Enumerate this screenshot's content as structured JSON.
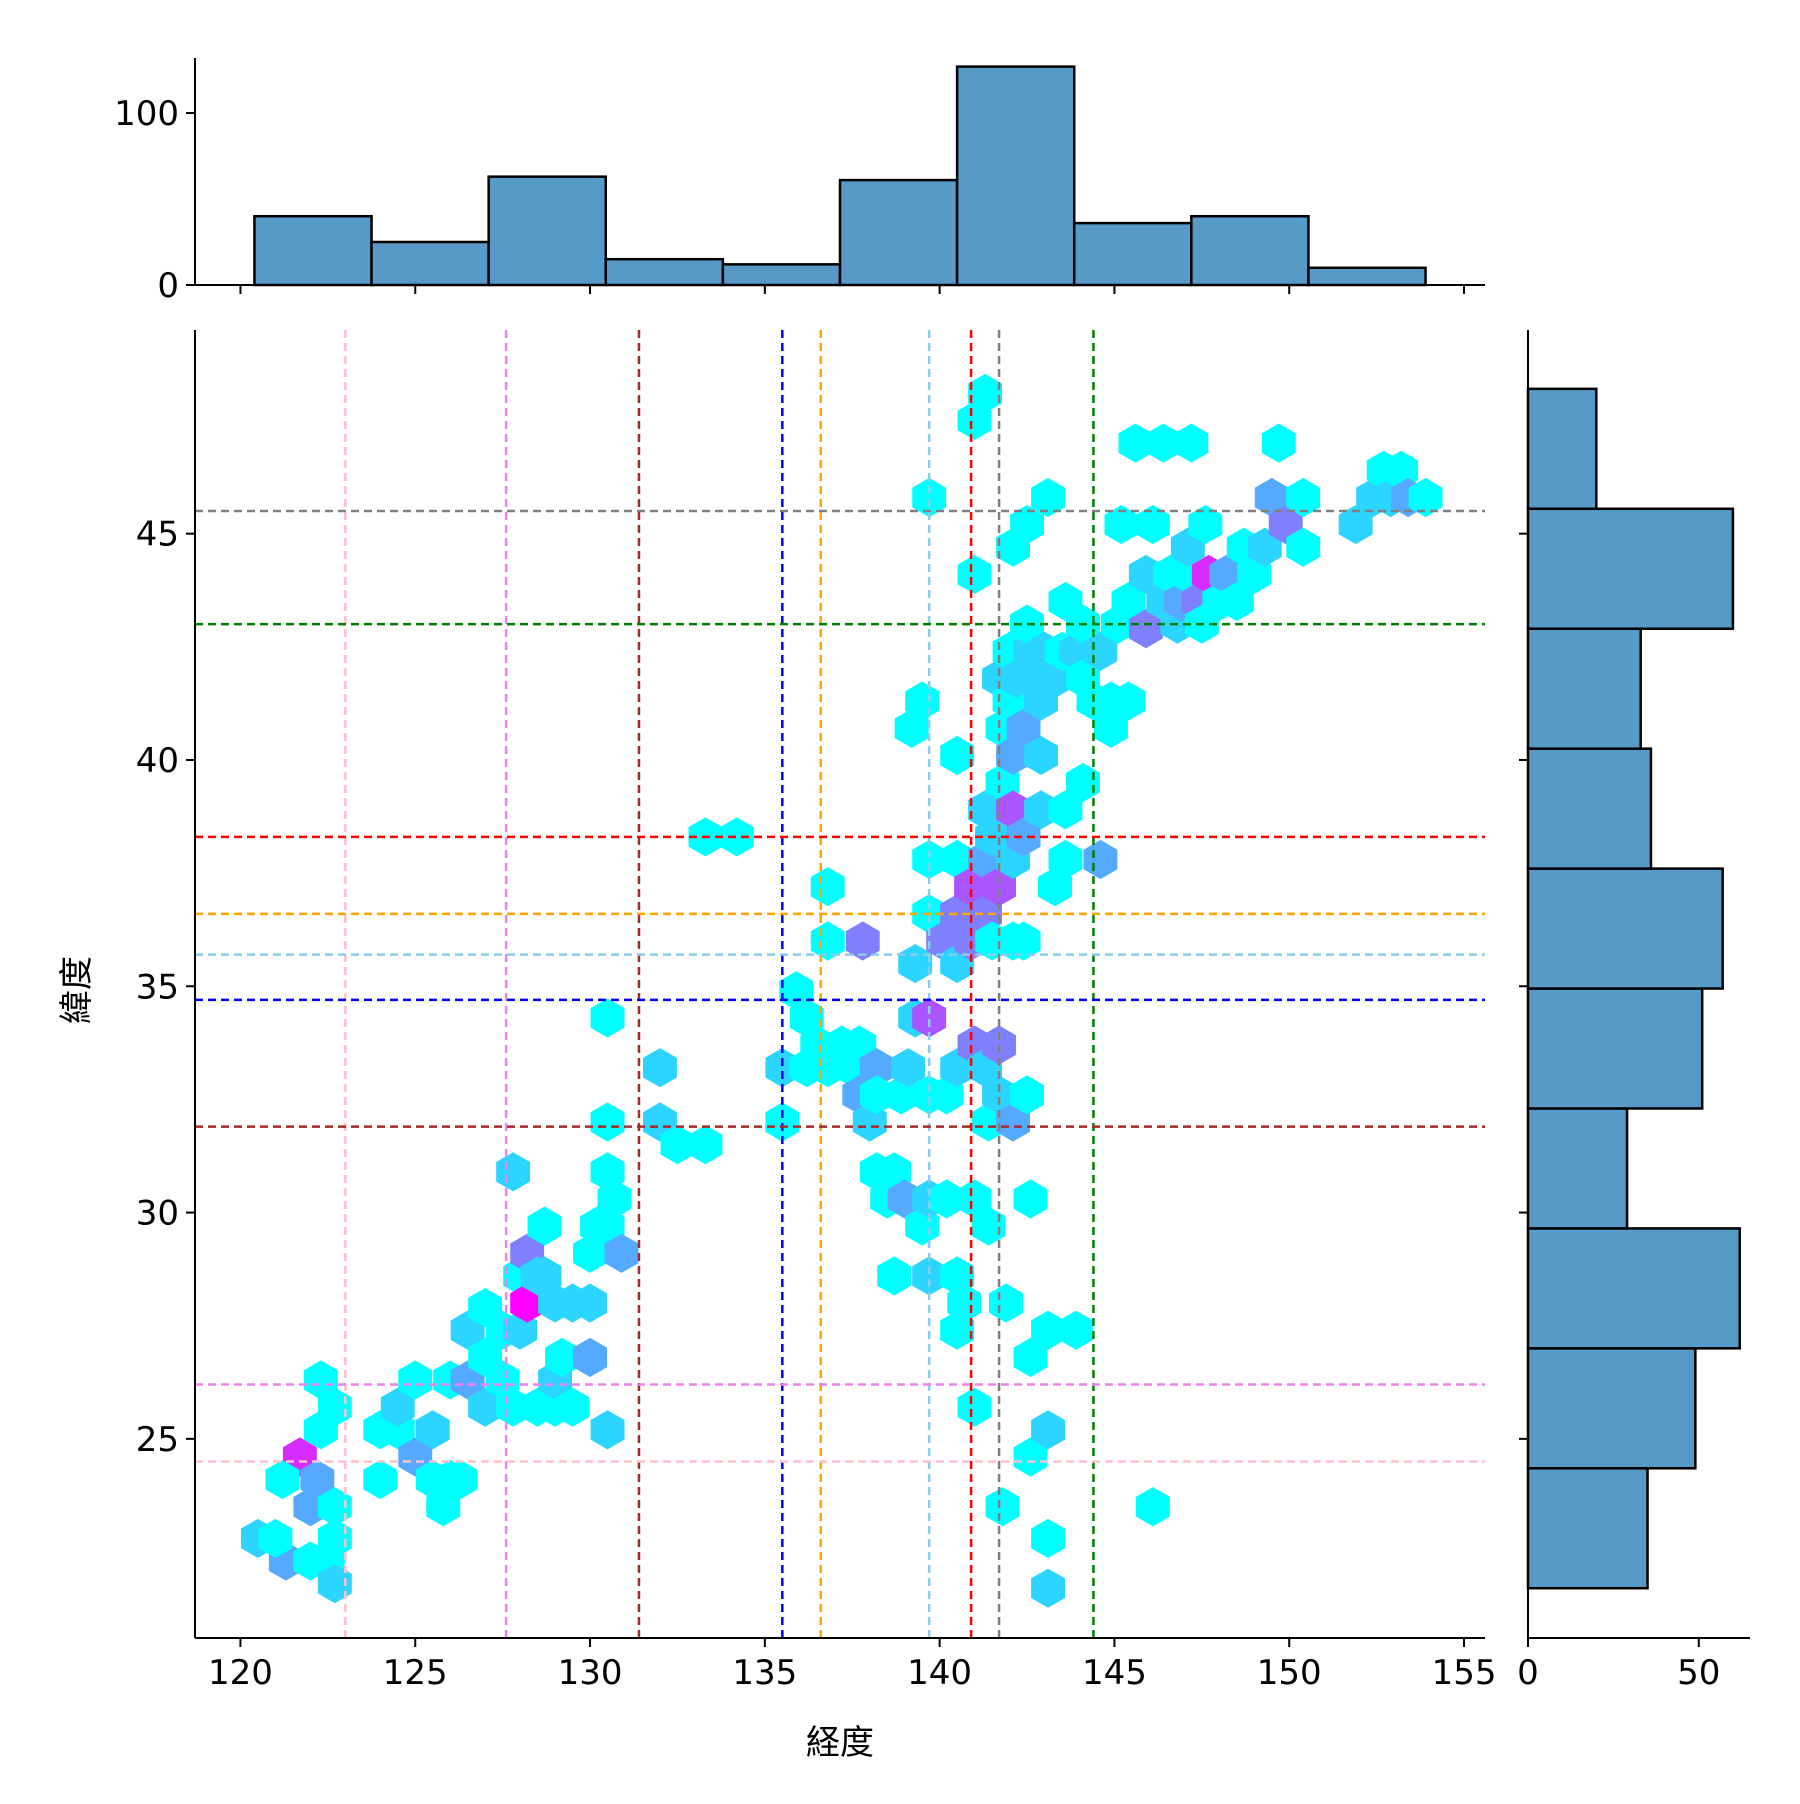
{
  "chart_data": {
    "type": "hexbin",
    "xlabel": "経度",
    "ylabel": "緯度",
    "xlim": [
      118.7,
      155.6
    ],
    "ylim": [
      20.6,
      49.5
    ],
    "xticks": [
      "120",
      "125",
      "130",
      "135",
      "140",
      "145",
      "150",
      "155"
    ],
    "xtick_values": [
      120,
      125,
      130,
      135,
      140,
      145,
      150,
      155
    ],
    "yticks": [
      "25",
      "30",
      "35",
      "40",
      "45"
    ],
    "ytick_values": [
      25,
      30,
      35,
      40,
      45
    ],
    "colormap": "cool",
    "color_low": "#00ffff",
    "color_high": "#ff00ff",
    "hexbins": [
      {
        "x": 121.7,
        "y": 24.6,
        "c": 6
      },
      {
        "x": 122.0,
        "y": 23.5,
        "c": 3
      },
      {
        "x": 122.2,
        "y": 24.1,
        "c": 3
      },
      {
        "x": 121.3,
        "y": 22.3,
        "c": 3
      },
      {
        "x": 120.5,
        "y": 22.8,
        "c": 2
      },
      {
        "x": 121.2,
        "y": 24.1,
        "c": 1
      },
      {
        "x": 121.0,
        "y": 22.8,
        "c": 1
      },
      {
        "x": 122.0,
        "y": 22.3,
        "c": 1
      },
      {
        "x": 122.5,
        "y": 22.3,
        "c": 1
      },
      {
        "x": 122.7,
        "y": 21.8,
        "c": 2
      },
      {
        "x": 122.7,
        "y": 22.8,
        "c": 1
      },
      {
        "x": 122.3,
        "y": 25.2,
        "c": 1
      },
      {
        "x": 122.7,
        "y": 25.7,
        "c": 1
      },
      {
        "x": 122.3,
        "y": 26.3,
        "c": 1
      },
      {
        "x": 122.7,
        "y": 23.5,
        "c": 1
      },
      {
        "x": 124.0,
        "y": 24.1,
        "c": 1
      },
      {
        "x": 124.0,
        "y": 25.2,
        "c": 1
      },
      {
        "x": 124.5,
        "y": 25.2,
        "c": 1
      },
      {
        "x": 124.5,
        "y": 25.7,
        "c": 2
      },
      {
        "x": 125.0,
        "y": 26.3,
        "c": 1
      },
      {
        "x": 125.0,
        "y": 24.6,
        "c": 3
      },
      {
        "x": 125.5,
        "y": 24.1,
        "c": 1
      },
      {
        "x": 125.5,
        "y": 25.2,
        "c": 2
      },
      {
        "x": 126.0,
        "y": 24.1,
        "c": 1
      },
      {
        "x": 125.8,
        "y": 23.5,
        "c": 1
      },
      {
        "x": 126.3,
        "y": 24.1,
        "c": 1
      },
      {
        "x": 126.0,
        "y": 26.3,
        "c": 1
      },
      {
        "x": 126.5,
        "y": 26.3,
        "c": 3
      },
      {
        "x": 126.5,
        "y": 27.4,
        "c": 2
      },
      {
        "x": 127.0,
        "y": 25.7,
        "c": 2
      },
      {
        "x": 127.0,
        "y": 26.8,
        "c": 1
      },
      {
        "x": 127.0,
        "y": 27.9,
        "c": 1
      },
      {
        "x": 127.5,
        "y": 26.3,
        "c": 1
      },
      {
        "x": 127.5,
        "y": 27.4,
        "c": 1
      },
      {
        "x": 127.8,
        "y": 25.7,
        "c": 1
      },
      {
        "x": 128.0,
        "y": 27.4,
        "c": 2
      },
      {
        "x": 128.0,
        "y": 28.6,
        "c": 1
      },
      {
        "x": 127.8,
        "y": 30.9,
        "c": 2
      },
      {
        "x": 128.2,
        "y": 29.1,
        "c": 4
      },
      {
        "x": 128.2,
        "y": 28.0,
        "c": 7
      },
      {
        "x": 128.5,
        "y": 25.7,
        "c": 1
      },
      {
        "x": 128.5,
        "y": 28.6,
        "c": 2
      },
      {
        "x": 128.7,
        "y": 28.6,
        "c": 2
      },
      {
        "x": 128.7,
        "y": 29.7,
        "c": 1
      },
      {
        "x": 129.0,
        "y": 25.7,
        "c": 1
      },
      {
        "x": 129.0,
        "y": 26.3,
        "c": 2
      },
      {
        "x": 129.0,
        "y": 28.0,
        "c": 2
      },
      {
        "x": 129.2,
        "y": 26.8,
        "c": 1
      },
      {
        "x": 129.5,
        "y": 25.7,
        "c": 1
      },
      {
        "x": 129.5,
        "y": 28.0,
        "c": 2
      },
      {
        "x": 130.0,
        "y": 28.0,
        "c": 2
      },
      {
        "x": 130.0,
        "y": 26.8,
        "c": 3
      },
      {
        "x": 130.0,
        "y": 29.1,
        "c": 1
      },
      {
        "x": 130.2,
        "y": 29.7,
        "c": 1
      },
      {
        "x": 130.5,
        "y": 30.9,
        "c": 1
      },
      {
        "x": 130.7,
        "y": 30.3,
        "c": 1
      },
      {
        "x": 130.5,
        "y": 29.7,
        "c": 1
      },
      {
        "x": 130.9,
        "y": 29.1,
        "c": 3
      },
      {
        "x": 130.5,
        "y": 25.2,
        "c": 2
      },
      {
        "x": 130.5,
        "y": 32.0,
        "c": 1
      },
      {
        "x": 130.5,
        "y": 34.3,
        "c": 1
      },
      {
        "x": 132.0,
        "y": 33.2,
        "c": 2
      },
      {
        "x": 132.0,
        "y": 32.0,
        "c": 2
      },
      {
        "x": 132.5,
        "y": 31.5,
        "c": 1
      },
      {
        "x": 133.3,
        "y": 31.5,
        "c": 1
      },
      {
        "x": 133.3,
        "y": 38.3,
        "c": 1
      },
      {
        "x": 134.2,
        "y": 38.3,
        "c": 1
      },
      {
        "x": 135.5,
        "y": 33.2,
        "c": 2
      },
      {
        "x": 135.5,
        "y": 32.0,
        "c": 1
      },
      {
        "x": 135.9,
        "y": 34.9,
        "c": 1
      },
      {
        "x": 136.2,
        "y": 34.3,
        "c": 1
      },
      {
        "x": 136.2,
        "y": 33.2,
        "c": 1
      },
      {
        "x": 136.5,
        "y": 33.7,
        "c": 1
      },
      {
        "x": 136.8,
        "y": 33.2,
        "c": 1
      },
      {
        "x": 136.8,
        "y": 36.0,
        "c": 1
      },
      {
        "x": 136.8,
        "y": 37.2,
        "c": 1
      },
      {
        "x": 137.2,
        "y": 33.7,
        "c": 1
      },
      {
        "x": 137.5,
        "y": 33.2,
        "c": 1
      },
      {
        "x": 137.7,
        "y": 33.7,
        "c": 1
      },
      {
        "x": 137.7,
        "y": 32.6,
        "c": 3
      },
      {
        "x": 137.8,
        "y": 36.0,
        "c": 4
      },
      {
        "x": 138.0,
        "y": 32.0,
        "c": 2
      },
      {
        "x": 138.2,
        "y": 33.2,
        "c": 3
      },
      {
        "x": 138.2,
        "y": 32.6,
        "c": 1
      },
      {
        "x": 138.2,
        "y": 30.9,
        "c": 1
      },
      {
        "x": 138.5,
        "y": 30.3,
        "c": 1
      },
      {
        "x": 138.7,
        "y": 30.9,
        "c": 1
      },
      {
        "x": 138.9,
        "y": 32.6,
        "c": 1
      },
      {
        "x": 138.7,
        "y": 28.6,
        "c": 1
      },
      {
        "x": 139.0,
        "y": 30.3,
        "c": 3
      },
      {
        "x": 139.1,
        "y": 33.2,
        "c": 2
      },
      {
        "x": 139.3,
        "y": 35.5,
        "c": 2
      },
      {
        "x": 139.3,
        "y": 34.3,
        "c": 2
      },
      {
        "x": 139.7,
        "y": 34.3,
        "c": 5
      },
      {
        "x": 139.7,
        "y": 32.6,
        "c": 1
      },
      {
        "x": 139.5,
        "y": 29.7,
        "c": 1
      },
      {
        "x": 139.7,
        "y": 28.6,
        "c": 2
      },
      {
        "x": 139.7,
        "y": 30.3,
        "c": 2
      },
      {
        "x": 139.7,
        "y": 36.6,
        "c": 1
      },
      {
        "x": 139.7,
        "y": 37.8,
        "c": 1
      },
      {
        "x": 139.7,
        "y": 45.8,
        "c": 1
      },
      {
        "x": 139.5,
        "y": 41.3,
        "c": 1
      },
      {
        "x": 139.2,
        "y": 40.7,
        "c": 1
      },
      {
        "x": 140.1,
        "y": 36.0,
        "c": 4
      },
      {
        "x": 140.2,
        "y": 32.6,
        "c": 1
      },
      {
        "x": 140.2,
        "y": 30.3,
        "c": 1
      },
      {
        "x": 140.5,
        "y": 33.2,
        "c": 2
      },
      {
        "x": 140.5,
        "y": 35.5,
        "c": 2
      },
      {
        "x": 140.5,
        "y": 36.6,
        "c": 4
      },
      {
        "x": 140.5,
        "y": 37.8,
        "c": 1
      },
      {
        "x": 140.5,
        "y": 28.6,
        "c": 1
      },
      {
        "x": 140.5,
        "y": 27.4,
        "c": 1
      },
      {
        "x": 140.5,
        "y": 40.1,
        "c": 1
      },
      {
        "x": 140.7,
        "y": 28.0,
        "c": 1
      },
      {
        "x": 140.9,
        "y": 37.2,
        "c": 5
      },
      {
        "x": 140.9,
        "y": 36.0,
        "c": 4
      },
      {
        "x": 141.0,
        "y": 33.7,
        "c": 4
      },
      {
        "x": 141.0,
        "y": 30.3,
        "c": 1
      },
      {
        "x": 141.0,
        "y": 25.7,
        "c": 1
      },
      {
        "x": 141.0,
        "y": 44.1,
        "c": 1
      },
      {
        "x": 141.0,
        "y": 47.5,
        "c": 1
      },
      {
        "x": 141.3,
        "y": 48.1,
        "c": 1
      },
      {
        "x": 141.3,
        "y": 38.9,
        "c": 2
      },
      {
        "x": 141.3,
        "y": 36.6,
        "c": 4
      },
      {
        "x": 141.3,
        "y": 37.8,
        "c": 3
      },
      {
        "x": 141.3,
        "y": 33.2,
        "c": 2
      },
      {
        "x": 141.4,
        "y": 32.0,
        "c": 1
      },
      {
        "x": 141.4,
        "y": 29.7,
        "c": 1
      },
      {
        "x": 141.5,
        "y": 38.3,
        "c": 2
      },
      {
        "x": 141.5,
        "y": 36.0,
        "c": 1
      },
      {
        "x": 141.7,
        "y": 37.2,
        "c": 5
      },
      {
        "x": 141.7,
        "y": 33.7,
        "c": 4
      },
      {
        "x": 141.7,
        "y": 32.6,
        "c": 2
      },
      {
        "x": 141.7,
        "y": 41.8,
        "c": 2
      },
      {
        "x": 141.8,
        "y": 39.5,
        "c": 1
      },
      {
        "x": 141.8,
        "y": 40.7,
        "c": 1
      },
      {
        "x": 141.8,
        "y": 23.5,
        "c": 1
      },
      {
        "x": 141.9,
        "y": 28.0,
        "c": 1
      },
      {
        "x": 142.0,
        "y": 42.4,
        "c": 1
      },
      {
        "x": 142.0,
        "y": 41.3,
        "c": 1
      },
      {
        "x": 142.1,
        "y": 40.1,
        "c": 3
      },
      {
        "x": 142.1,
        "y": 38.9,
        "c": 5
      },
      {
        "x": 142.1,
        "y": 37.8,
        "c": 2
      },
      {
        "x": 142.1,
        "y": 36.0,
        "c": 1
      },
      {
        "x": 142.1,
        "y": 32.0,
        "c": 3
      },
      {
        "x": 142.1,
        "y": 44.7,
        "c": 1
      },
      {
        "x": 142.2,
        "y": 41.8,
        "c": 2
      },
      {
        "x": 142.4,
        "y": 36.0,
        "c": 1
      },
      {
        "x": 142.4,
        "y": 38.3,
        "c": 3
      },
      {
        "x": 142.4,
        "y": 40.7,
        "c": 3
      },
      {
        "x": 142.6,
        "y": 42.4,
        "c": 2
      },
      {
        "x": 142.5,
        "y": 45.2,
        "c": 1
      },
      {
        "x": 142.5,
        "y": 43.0,
        "c": 1
      },
      {
        "x": 142.5,
        "y": 32.6,
        "c": 1
      },
      {
        "x": 142.6,
        "y": 26.8,
        "c": 1
      },
      {
        "x": 142.6,
        "y": 24.6,
        "c": 1
      },
      {
        "x": 142.6,
        "y": 41.8,
        "c": 2
      },
      {
        "x": 142.6,
        "y": 30.3,
        "c": 1
      },
      {
        "x": 142.9,
        "y": 41.3,
        "c": 2
      },
      {
        "x": 142.9,
        "y": 40.1,
        "c": 2
      },
      {
        "x": 142.9,
        "y": 38.9,
        "c": 2
      },
      {
        "x": 143.0,
        "y": 42.4,
        "c": 2
      },
      {
        "x": 143.1,
        "y": 45.8,
        "c": 1
      },
      {
        "x": 143.1,
        "y": 27.4,
        "c": 1
      },
      {
        "x": 143.1,
        "y": 25.2,
        "c": 2
      },
      {
        "x": 143.1,
        "y": 22.8,
        "c": 1
      },
      {
        "x": 143.1,
        "y": 21.7,
        "c": 2
      },
      {
        "x": 143.3,
        "y": 41.8,
        "c": 2
      },
      {
        "x": 143.3,
        "y": 37.2,
        "c": 1
      },
      {
        "x": 143.5,
        "y": 42.4,
        "c": 1
      },
      {
        "x": 143.6,
        "y": 43.5,
        "c": 1
      },
      {
        "x": 143.6,
        "y": 38.9,
        "c": 1
      },
      {
        "x": 143.6,
        "y": 37.8,
        "c": 1
      },
      {
        "x": 143.9,
        "y": 27.4,
        "c": 1
      },
      {
        "x": 143.9,
        "y": 42.4,
        "c": 2
      },
      {
        "x": 144.1,
        "y": 41.8,
        "c": 1
      },
      {
        "x": 144.1,
        "y": 43.0,
        "c": 1
      },
      {
        "x": 144.1,
        "y": 39.5,
        "c": 1
      },
      {
        "x": 144.4,
        "y": 41.3,
        "c": 1
      },
      {
        "x": 144.6,
        "y": 42.4,
        "c": 2
      },
      {
        "x": 144.6,
        "y": 37.8,
        "c": 3
      },
      {
        "x": 144.9,
        "y": 40.7,
        "c": 1
      },
      {
        "x": 144.9,
        "y": 41.3,
        "c": 1
      },
      {
        "x": 145.1,
        "y": 43.0,
        "c": 1
      },
      {
        "x": 145.2,
        "y": 45.2,
        "c": 1
      },
      {
        "x": 145.4,
        "y": 41.3,
        "c": 1
      },
      {
        "x": 145.4,
        "y": 43.5,
        "c": 1
      },
      {
        "x": 145.6,
        "y": 47.0,
        "c": 1
      },
      {
        "x": 145.9,
        "y": 44.1,
        "c": 2
      },
      {
        "x": 145.9,
        "y": 42.9,
        "c": 4
      },
      {
        "x": 146.1,
        "y": 45.2,
        "c": 1
      },
      {
        "x": 146.1,
        "y": 23.5,
        "c": 1
      },
      {
        "x": 146.4,
        "y": 43.5,
        "c": 2
      },
      {
        "x": 146.4,
        "y": 47.0,
        "c": 1
      },
      {
        "x": 146.6,
        "y": 44.1,
        "c": 1
      },
      {
        "x": 146.8,
        "y": 43.0,
        "c": 2
      },
      {
        "x": 146.9,
        "y": 43.5,
        "c": 3
      },
      {
        "x": 147.1,
        "y": 44.1,
        "c": 1
      },
      {
        "x": 147.1,
        "y": 44.7,
        "c": 2
      },
      {
        "x": 147.2,
        "y": 47.0,
        "c": 1
      },
      {
        "x": 147.4,
        "y": 43.5,
        "c": 4
      },
      {
        "x": 147.5,
        "y": 43.0,
        "c": 1
      },
      {
        "x": 147.6,
        "y": 45.2,
        "c": 1
      },
      {
        "x": 147.7,
        "y": 44.1,
        "c": 6
      },
      {
        "x": 148.0,
        "y": 43.5,
        "c": 1
      },
      {
        "x": 148.2,
        "y": 44.1,
        "c": 3
      },
      {
        "x": 148.5,
        "y": 43.5,
        "c": 1
      },
      {
        "x": 148.7,
        "y": 44.7,
        "c": 1
      },
      {
        "x": 149.0,
        "y": 44.1,
        "c": 1
      },
      {
        "x": 149.3,
        "y": 44.7,
        "c": 2
      },
      {
        "x": 149.5,
        "y": 45.8,
        "c": 3
      },
      {
        "x": 149.7,
        "y": 47.0,
        "c": 1
      },
      {
        "x": 149.9,
        "y": 45.2,
        "c": 4
      },
      {
        "x": 150.4,
        "y": 45.8,
        "c": 1
      },
      {
        "x": 150.4,
        "y": 44.7,
        "c": 1
      },
      {
        "x": 151.9,
        "y": 45.2,
        "c": 2
      },
      {
        "x": 152.4,
        "y": 45.8,
        "c": 2
      },
      {
        "x": 152.7,
        "y": 46.4,
        "c": 1
      },
      {
        "x": 152.9,
        "y": 45.8,
        "c": 2
      },
      {
        "x": 153.2,
        "y": 46.4,
        "c": 1
      },
      {
        "x": 153.4,
        "y": 45.8,
        "c": 3
      },
      {
        "x": 153.9,
        "y": 45.8,
        "c": 1
      }
    ],
    "vlines": [
      {
        "x": 123.0,
        "color": "#ffc0cb"
      },
      {
        "x": 127.6,
        "color": "#ee82ee"
      },
      {
        "x": 131.4,
        "color": "#a52a2a"
      },
      {
        "x": 135.5,
        "color": "#0000ff"
      },
      {
        "x": 136.6,
        "color": "#ffa500"
      },
      {
        "x": 139.7,
        "color": "#87ceeb"
      },
      {
        "x": 140.9,
        "color": "#ff0000"
      },
      {
        "x": 141.7,
        "color": "#808080"
      },
      {
        "x": 144.4,
        "color": "#008000"
      }
    ],
    "hlines": [
      {
        "y": 24.5,
        "color": "#ffc0cb"
      },
      {
        "y": 26.2,
        "color": "#ee82ee"
      },
      {
        "y": 31.9,
        "color": "#a52a2a"
      },
      {
        "y": 34.7,
        "color": "#0000ff"
      },
      {
        "y": 35.7,
        "color": "#87ceeb"
      },
      {
        "y": 36.6,
        "color": "#ffa500"
      },
      {
        "y": 38.3,
        "color": "#ff0000"
      },
      {
        "y": 43.0,
        "color": "#008000"
      },
      {
        "y": 45.5,
        "color": "#808080"
      }
    ],
    "top_hist": {
      "ylim": [
        0,
        132
      ],
      "yticks": [
        "0",
        "100"
      ],
      "ytick_values": [
        0,
        100
      ],
      "bar_color": "#5799c7",
      "bins": [
        120.4,
        123.75,
        127.1,
        130.45,
        133.8,
        137.15,
        140.5,
        143.85,
        147.2,
        150.55,
        153.9
      ],
      "counts": [
        40,
        25,
        63,
        15,
        12,
        61,
        127,
        36,
        40,
        10
      ]
    },
    "right_hist": {
      "xlim": [
        0,
        65
      ],
      "xticks": [
        "0",
        "50"
      ],
      "xtick_values": [
        0,
        50
      ],
      "bar_color": "#5799c7",
      "bins": [
        21.7,
        24.35,
        27.0,
        29.65,
        32.3,
        34.95,
        37.6,
        40.25,
        42.9,
        45.55,
        48.2
      ],
      "counts": [
        35,
        49,
        62,
        29,
        51,
        57,
        36,
        33,
        60,
        20
      ]
    }
  }
}
